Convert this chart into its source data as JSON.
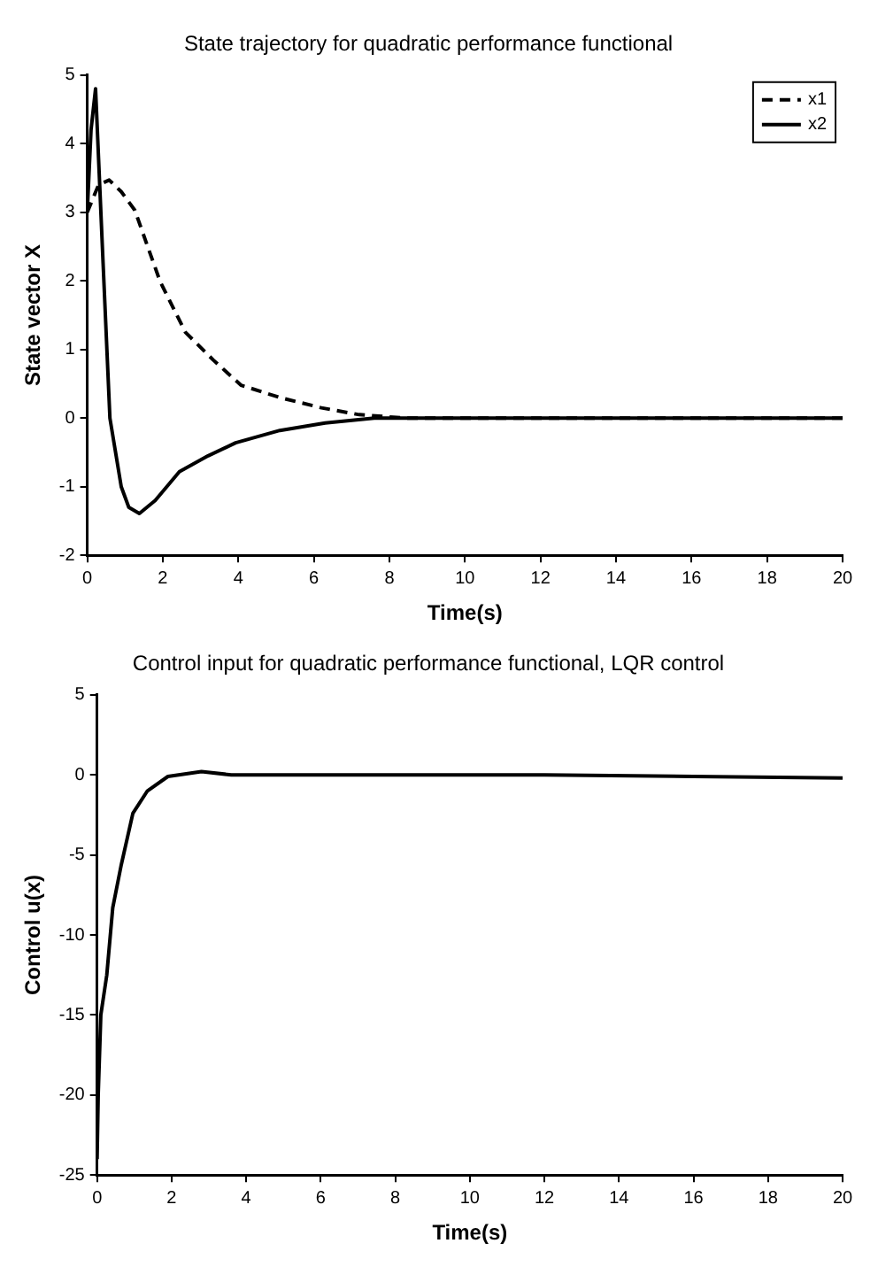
{
  "chart_data": [
    {
      "type": "line",
      "title": "State trajectory for quadratic performance functional",
      "xlabel": "Time(s)",
      "ylabel": "State vector X",
      "xlim": [
        0,
        20
      ],
      "xticks": [
        0,
        2,
        4,
        6,
        8,
        10,
        12,
        14,
        16,
        18,
        20
      ],
      "ylim": [
        -2,
        5
      ],
      "yticks": [
        -2,
        -1,
        0,
        1,
        2,
        3,
        4,
        5
      ],
      "legend": "top right",
      "grid": false,
      "marker": "none",
      "series": [
        {
          "name": "x1",
          "color": "#000000",
          "line_style": "dashed",
          "x": [
            0,
            0.3,
            0.58,
            0.9,
            1.26,
            1.6,
            1.93,
            2.6,
            3.33,
            4.07,
            5.1,
            6.2,
            7.2,
            8.4,
            10,
            12,
            14,
            16,
            18,
            20
          ],
          "values": [
            3,
            3.4,
            3.47,
            3.3,
            3.03,
            2.5,
            1.99,
            1.25,
            0.85,
            0.48,
            0.3,
            0.15,
            0.05,
            0,
            0,
            0,
            0,
            0,
            0,
            0
          ]
        },
        {
          "name": "x2",
          "color": "#000000",
          "line_style": "solid",
          "x": [
            0,
            0.1,
            0.22,
            0.4,
            0.6,
            0.9,
            1.1,
            1.38,
            1.8,
            2.44,
            3.2,
            3.93,
            5.1,
            6.3,
            7.6,
            10,
            12,
            14,
            16,
            18,
            20
          ],
          "values": [
            3,
            4.2,
            4.8,
            2.5,
            0,
            -1,
            -1.3,
            -1.39,
            -1.2,
            -0.78,
            -0.55,
            -0.36,
            -0.18,
            -0.07,
            0,
            0,
            0,
            0,
            0,
            0,
            0
          ]
        }
      ]
    },
    {
      "type": "line",
      "title": "Control input for quadratic performance functional, LQR control",
      "xlabel": "Time(s)",
      "ylabel": "Control u(x)",
      "xlim": [
        0,
        20
      ],
      "xticks": [
        0,
        2,
        4,
        6,
        8,
        10,
        12,
        14,
        16,
        18,
        20
      ],
      "ylim": [
        -25,
        5
      ],
      "yticks": [
        -25,
        -20,
        -15,
        -10,
        -5,
        0,
        5
      ],
      "legend": false,
      "grid": false,
      "marker": "none",
      "series": [
        {
          "color": "#000000",
          "line_style": "solid",
          "x": [
            0,
            0.03,
            0.1,
            0.26,
            0.42,
            0.65,
            0.96,
            1.35,
            1.9,
            2.8,
            3.6,
            5,
            8,
            12,
            16,
            20
          ],
          "values": [
            -24,
            -20,
            -15,
            -12.5,
            -8.3,
            -5.6,
            -2.4,
            -1,
            -0.1,
            0.2,
            0,
            0,
            0,
            0,
            -0.1,
            -0.2
          ]
        }
      ]
    }
  ]
}
